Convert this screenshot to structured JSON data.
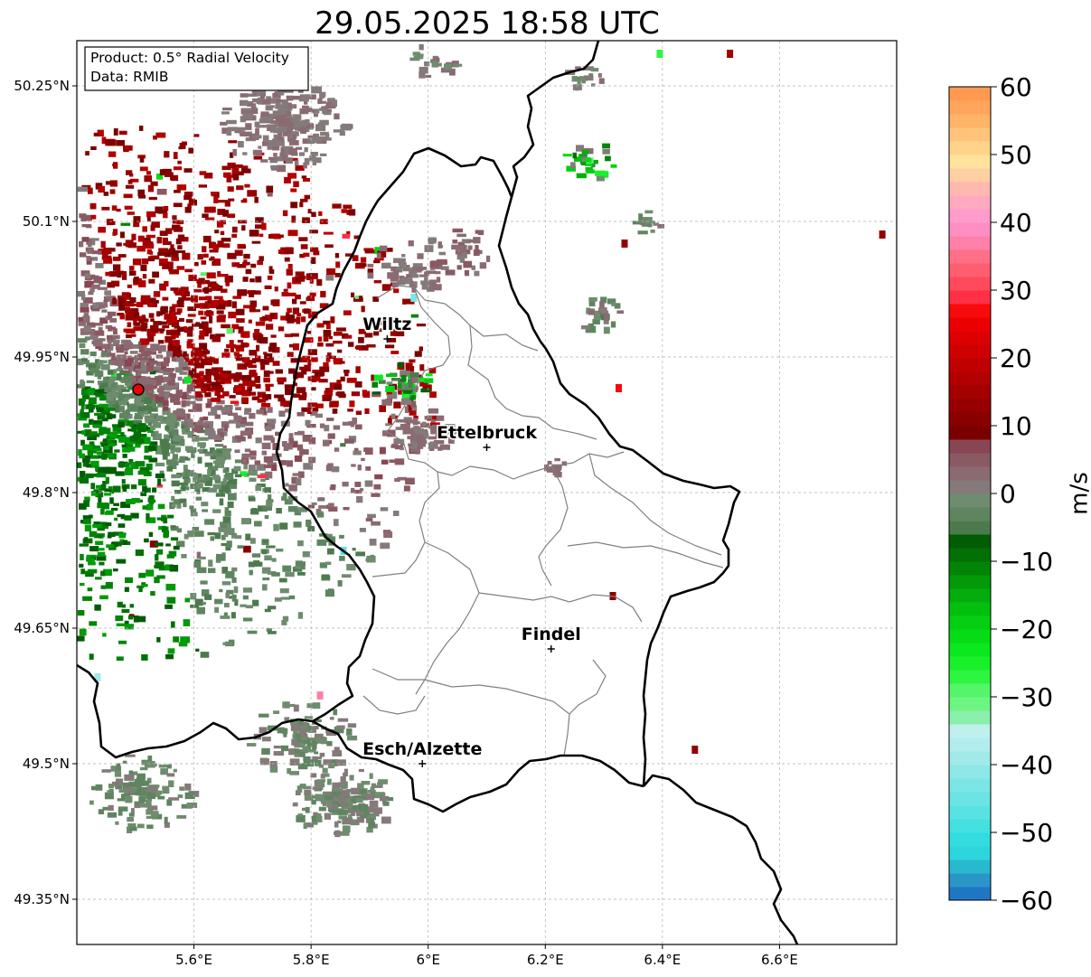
{
  "title": "29.05.2025 18:58 UTC",
  "info_box": {
    "product": "Product: 0.5° Radial Velocity",
    "data": "Data: RMIB"
  },
  "map": {
    "lon_range": [
      5.4,
      6.8
    ],
    "lat_range": [
      49.3,
      50.3
    ],
    "lon_ticks": [
      {
        "value": 5.6,
        "label": "5.6°E"
      },
      {
        "value": 5.8,
        "label": "5.8°E"
      },
      {
        "value": 6.0,
        "label": "6°E"
      },
      {
        "value": 6.2,
        "label": "6.2°E"
      },
      {
        "value": 6.4,
        "label": "6.4°E"
      },
      {
        "value": 6.6,
        "label": "6.6°E"
      }
    ],
    "lat_ticks": [
      {
        "value": 49.35,
        "label": "49.35°N"
      },
      {
        "value": 49.5,
        "label": "49.5°N"
      },
      {
        "value": 49.65,
        "label": "49.65°N"
      },
      {
        "value": 49.8,
        "label": "49.8°N"
      },
      {
        "value": 49.95,
        "label": "49.95°N"
      },
      {
        "value": 50.1,
        "label": "50.1°N"
      },
      {
        "value": 50.25,
        "label": "50.25°N"
      }
    ],
    "grid": true,
    "radar_site": {
      "lon": 5.505,
      "lat": 49.914
    },
    "cities": [
      {
        "name": "Wiltz",
        "lon": 5.93,
        "lat": 49.97
      },
      {
        "name": "Ettelbruck",
        "lon": 6.1,
        "lat": 49.85
      },
      {
        "name": "Findel",
        "lon": 6.21,
        "lat": 49.627
      },
      {
        "name": "Esch/Alzette",
        "lon": 5.99,
        "lat": 49.5
      }
    ]
  },
  "colorbar": {
    "label": "m/s",
    "min": -60,
    "max": 60,
    "ticks": [
      {
        "value": 60,
        "label": "60"
      },
      {
        "value": 50,
        "label": "50"
      },
      {
        "value": 40,
        "label": "40"
      },
      {
        "value": 30,
        "label": "30"
      },
      {
        "value": 20,
        "label": "20"
      },
      {
        "value": 10,
        "label": "10"
      },
      {
        "value": 0,
        "label": "0"
      },
      {
        "value": -10,
        "label": "−10"
      },
      {
        "value": -20,
        "label": "−20"
      },
      {
        "value": -30,
        "label": "−30"
      },
      {
        "value": -40,
        "label": "−40"
      },
      {
        "value": -50,
        "label": "−50"
      },
      {
        "value": -60,
        "label": "−60"
      }
    ],
    "stops": [
      {
        "from": -60,
        "to": -58,
        "color": "#1f77c4"
      },
      {
        "from": -58,
        "to": -56,
        "color": "#2a96c8"
      },
      {
        "from": -56,
        "to": -54,
        "color": "#29b9cf"
      },
      {
        "from": -54,
        "to": -52,
        "color": "#2dd5dc"
      },
      {
        "from": -52,
        "to": -50,
        "color": "#33dcdf"
      },
      {
        "from": -50,
        "to": -48,
        "color": "#45e0e0"
      },
      {
        "from": -48,
        "to": -46,
        "color": "#58e3e2"
      },
      {
        "from": -46,
        "to": -44,
        "color": "#6ae5e4"
      },
      {
        "from": -44,
        "to": -42,
        "color": "#7ce6e6"
      },
      {
        "from": -42,
        "to": -40,
        "color": "#8ee8e8"
      },
      {
        "from": -40,
        "to": -38,
        "color": "#a0eaea"
      },
      {
        "from": -38,
        "to": -36,
        "color": "#b2eded"
      },
      {
        "from": -36,
        "to": -34,
        "color": "#bff0ee"
      },
      {
        "from": -34,
        "to": -32,
        "color": "#8af0ac"
      },
      {
        "from": -32,
        "to": -30,
        "color": "#6df582"
      },
      {
        "from": -30,
        "to": -28,
        "color": "#55f56a"
      },
      {
        "from": -28,
        "to": -26,
        "color": "#2ef53f"
      },
      {
        "from": -26,
        "to": -24,
        "color": "#18f02a"
      },
      {
        "from": -24,
        "to": -22,
        "color": "#0ae81e"
      },
      {
        "from": -22,
        "to": -20,
        "color": "#05dc16"
      },
      {
        "from": -20,
        "to": -18,
        "color": "#04cf12"
      },
      {
        "from": -18,
        "to": -16,
        "color": "#03c00f"
      },
      {
        "from": -16,
        "to": -14,
        "color": "#03ae0c"
      },
      {
        "from": -14,
        "to": -12,
        "color": "#029a09"
      },
      {
        "from": -12,
        "to": -10,
        "color": "#028407"
      },
      {
        "from": -10,
        "to": -8,
        "color": "#027005"
      },
      {
        "from": -8,
        "to": -6,
        "color": "#015c04"
      },
      {
        "from": -6,
        "to": -4,
        "color": "#4d7a4d"
      },
      {
        "from": -4,
        "to": -2,
        "color": "#5f8560"
      },
      {
        "from": -2,
        "to": 0,
        "color": "#6f8c6f"
      },
      {
        "from": 0,
        "to": 2,
        "color": "#847a7a"
      },
      {
        "from": 2,
        "to": 4,
        "color": "#8a6b72"
      },
      {
        "from": 4,
        "to": 6,
        "color": "#8a5a63"
      },
      {
        "from": 6,
        "to": 8,
        "color": "#884652"
      },
      {
        "from": 8,
        "to": 10,
        "color": "#7a0000"
      },
      {
        "from": 10,
        "to": 12,
        "color": "#880000"
      },
      {
        "from": 12,
        "to": 14,
        "color": "#960000"
      },
      {
        "from": 14,
        "to": 16,
        "color": "#a30000"
      },
      {
        "from": 16,
        "to": 18,
        "color": "#b20000"
      },
      {
        "from": 18,
        "to": 20,
        "color": "#c00000"
      },
      {
        "from": 20,
        "to": 22,
        "color": "#cf0000"
      },
      {
        "from": 22,
        "to": 24,
        "color": "#dd0000"
      },
      {
        "from": 24,
        "to": 26,
        "color": "#ea0000"
      },
      {
        "from": 26,
        "to": 28,
        "color": "#f80a0a"
      },
      {
        "from": 28,
        "to": 30,
        "color": "#ff3045"
      },
      {
        "from": 30,
        "to": 32,
        "color": "#ff4a5c"
      },
      {
        "from": 32,
        "to": 34,
        "color": "#ff5e70"
      },
      {
        "from": 34,
        "to": 36,
        "color": "#ff7088"
      },
      {
        "from": 36,
        "to": 38,
        "color": "#ff80a8"
      },
      {
        "from": 38,
        "to": 40,
        "color": "#ff8ec4"
      },
      {
        "from": 40,
        "to": 42,
        "color": "#ff9ccc"
      },
      {
        "from": 42,
        "to": 44,
        "color": "#ffaac0"
      },
      {
        "from": 44,
        "to": 46,
        "color": "#ffb8b0"
      },
      {
        "from": 46,
        "to": 48,
        "color": "#ffcfa4"
      },
      {
        "from": 48,
        "to": 50,
        "color": "#ffe39c"
      },
      {
        "from": 50,
        "to": 52,
        "color": "#ffd48a"
      },
      {
        "from": 52,
        "to": 54,
        "color": "#ffc47a"
      },
      {
        "from": 54,
        "to": 56,
        "color": "#ffb46a"
      },
      {
        "from": 56,
        "to": 58,
        "color": "#ffa65c"
      },
      {
        "from": 58,
        "to": 60,
        "color": "#ff9a50"
      }
    ]
  },
  "colors": {
    "country_border": "#000000",
    "canton_border": "#808080",
    "grid": "#b0b0b0",
    "radar_site": "#e8000b",
    "velocity_inbound_dark": "#0a6e0a",
    "velocity_outbound_dark": "#7a0000",
    "velocity_near_zero_green": "#6e8a6e",
    "velocity_near_zero_brown": "#8a7070"
  }
}
